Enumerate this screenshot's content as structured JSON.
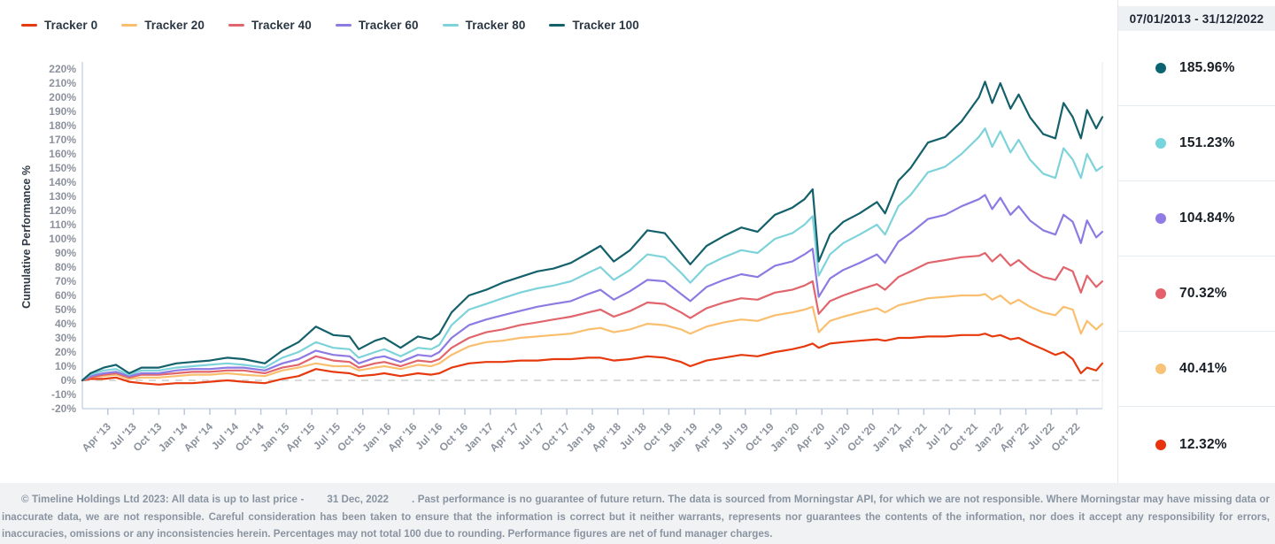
{
  "legend": {
    "items": [
      {
        "label": "Tracker 0",
        "color": "#e63a0e"
      },
      {
        "label": "Tracker 20",
        "color": "#f9bf6f"
      },
      {
        "label": "Tracker 40",
        "color": "#e1656d"
      },
      {
        "label": "Tracker 60",
        "color": "#8d7ae2"
      },
      {
        "label": "Tracker 80",
        "color": "#7ed3da"
      },
      {
        "label": "Tracker 100",
        "color": "#14616b"
      }
    ]
  },
  "sidebar": {
    "header": "07/01/2013 - 31/12/2022",
    "stats": [
      {
        "name": "Tracker 100",
        "value": "185.96%",
        "color": "#0c6472"
      },
      {
        "name": "Tracker 80",
        "value": "151.23%",
        "color": "#76d4dc"
      },
      {
        "name": "Tracker 60",
        "value": "104.84%",
        "color": "#8f7ae6"
      },
      {
        "name": "Tracker 40",
        "value": "70.32%",
        "color": "#e4606a"
      },
      {
        "name": "Tracker 20",
        "value": "40.41%",
        "color": "#f8c377"
      },
      {
        "name": "Tracker 0",
        "value": "12.32%",
        "color": "#e8330d"
      }
    ]
  },
  "chart_data": {
    "type": "line",
    "title": "",
    "xlabel": "",
    "ylabel": "Cumulative Performance %",
    "ylim": [
      -20,
      220
    ],
    "y_tick_step": 10,
    "grid": false,
    "zero_line_dashed": true,
    "legend_position": "top-left",
    "x_tick_labels": [
      "Apr '13",
      "Jul '13",
      "Oct '13",
      "Jan '14",
      "Apr '14",
      "Jul '14",
      "Oct '14",
      "Jan '15",
      "Apr '15",
      "Jul '15",
      "Oct '15",
      "Jan '16",
      "Apr '16",
      "Jul '16",
      "Oct '16",
      "Jan '17",
      "Apr '17",
      "Jul '17",
      "Oct '17",
      "Jan '18",
      "Apr '18",
      "Jul '18",
      "Oct '18",
      "Jan '19",
      "Apr '19",
      "Jul '19",
      "Oct '19",
      "Jan '20",
      "Apr '20",
      "Jul '20",
      "Oct '20",
      "Jan '21",
      "Apr '21",
      "Jul '21",
      "Oct '21",
      "Jan '22",
      "Apr '22",
      "Jul '22",
      "Oct '22"
    ],
    "x_years": [
      2013.0,
      2013.08,
      2013.21,
      2013.33,
      2013.46,
      2013.58,
      2013.75,
      2013.92,
      2014.08,
      2014.25,
      2014.42,
      2014.58,
      2014.79,
      2014.96,
      2015.12,
      2015.29,
      2015.46,
      2015.62,
      2015.71,
      2015.87,
      2015.96,
      2016.12,
      2016.29,
      2016.42,
      2016.5,
      2016.62,
      2016.79,
      2016.96,
      2017.12,
      2017.29,
      2017.46,
      2017.62,
      2017.79,
      2017.96,
      2018.08,
      2018.21,
      2018.37,
      2018.54,
      2018.71,
      2018.87,
      2018.96,
      2019.12,
      2019.29,
      2019.46,
      2019.62,
      2019.79,
      2019.96,
      2020.08,
      2020.16,
      2020.22,
      2020.33,
      2020.46,
      2020.62,
      2020.79,
      2020.87,
      2021.0,
      2021.12,
      2021.29,
      2021.46,
      2021.62,
      2021.79,
      2021.85,
      2021.92,
      2022.0,
      2022.1,
      2022.18,
      2022.29,
      2022.42,
      2022.54,
      2022.62,
      2022.71,
      2022.79,
      2022.85,
      2022.94,
      2023.0
    ],
    "series": [
      {
        "name": "Tracker 0",
        "color": "#e63a0e",
        "final_value": "12.32%",
        "values": [
          0,
          1,
          1,
          2,
          -1,
          -2,
          -3,
          -2,
          -2,
          -1,
          0,
          -1,
          -2,
          1,
          3,
          8,
          6,
          5,
          3,
          4,
          5,
          3,
          5,
          4,
          5,
          9,
          12,
          13,
          13,
          14,
          14,
          15,
          15,
          16,
          16,
          14,
          15,
          17,
          16,
          13,
          10,
          14,
          16,
          18,
          17,
          20,
          22,
          24,
          26,
          23,
          26,
          27,
          28,
          29,
          28,
          30,
          30,
          31,
          31,
          32,
          32,
          33,
          31,
          32,
          29,
          30,
          26,
          22,
          18,
          20,
          15,
          5,
          9,
          7,
          12
        ]
      },
      {
        "name": "Tracker 20",
        "color": "#f9bf6f",
        "final_value": "40.41%",
        "values": [
          0,
          2,
          3,
          4,
          1,
          2,
          2,
          3,
          4,
          4,
          5,
          4,
          3,
          7,
          9,
          12,
          10,
          10,
          7,
          9,
          10,
          8,
          11,
          10,
          12,
          18,
          24,
          27,
          28,
          30,
          31,
          32,
          33,
          36,
          37,
          34,
          36,
          40,
          39,
          36,
          33,
          38,
          41,
          43,
          42,
          46,
          48,
          50,
          52,
          34,
          42,
          45,
          48,
          51,
          48,
          53,
          55,
          58,
          59,
          60,
          60,
          61,
          57,
          60,
          54,
          57,
          52,
          48,
          46,
          52,
          50,
          33,
          42,
          36,
          40
        ]
      },
      {
        "name": "Tracker 40",
        "color": "#e1656d",
        "final_value": "70.32%",
        "values": [
          0,
          2,
          4,
          5,
          2,
          4,
          4,
          5,
          6,
          6,
          7,
          7,
          5,
          9,
          11,
          17,
          14,
          13,
          9,
          12,
          13,
          10,
          14,
          13,
          15,
          23,
          30,
          34,
          36,
          39,
          41,
          43,
          45,
          48,
          50,
          45,
          49,
          55,
          54,
          48,
          44,
          51,
          55,
          58,
          57,
          62,
          64,
          67,
          70,
          47,
          56,
          60,
          64,
          68,
          64,
          73,
          77,
          83,
          85,
          87,
          88,
          90,
          84,
          89,
          81,
          85,
          78,
          73,
          71,
          80,
          77,
          62,
          74,
          66,
          70
        ]
      },
      {
        "name": "Tracker 60",
        "color": "#8d7ae2",
        "final_value": "104.84%",
        "values": [
          0,
          3,
          5,
          6,
          3,
          5,
          5,
          7,
          8,
          8,
          9,
          9,
          7,
          12,
          15,
          21,
          18,
          17,
          12,
          16,
          17,
          13,
          18,
          17,
          20,
          30,
          39,
          43,
          46,
          49,
          52,
          54,
          56,
          61,
          64,
          57,
          63,
          71,
          70,
          61,
          56,
          66,
          71,
          75,
          73,
          81,
          84,
          89,
          93,
          59,
          72,
          78,
          83,
          89,
          83,
          98,
          104,
          114,
          117,
          123,
          128,
          131,
          121,
          129,
          117,
          123,
          113,
          106,
          103,
          117,
          112,
          97,
          113,
          101,
          105
        ]
      },
      {
        "name": "Tracker 80",
        "color": "#7ed3da",
        "final_value": "151.23%",
        "values": [
          0,
          4,
          7,
          8,
          4,
          7,
          7,
          9,
          10,
          11,
          12,
          11,
          9,
          16,
          20,
          27,
          23,
          22,
          16,
          20,
          22,
          17,
          23,
          22,
          25,
          39,
          50,
          54,
          58,
          62,
          65,
          67,
          70,
          76,
          80,
          71,
          78,
          89,
          87,
          76,
          69,
          81,
          87,
          92,
          90,
          100,
          104,
          110,
          116,
          74,
          89,
          97,
          103,
          110,
          103,
          123,
          131,
          147,
          151,
          160,
          172,
          178,
          165,
          176,
          161,
          170,
          156,
          146,
          143,
          164,
          156,
          143,
          160,
          148,
          151
        ]
      },
      {
        "name": "Tracker 100",
        "color": "#14616b",
        "final_value": "185.96%",
        "values": [
          0,
          5,
          9,
          11,
          5,
          9,
          9,
          12,
          13,
          14,
          16,
          15,
          12,
          21,
          27,
          38,
          32,
          31,
          22,
          28,
          30,
          23,
          31,
          29,
          33,
          48,
          60,
          64,
          69,
          73,
          77,
          79,
          83,
          90,
          95,
          84,
          92,
          106,
          104,
          90,
          82,
          95,
          102,
          108,
          105,
          117,
          122,
          128,
          135,
          84,
          103,
          112,
          118,
          126,
          118,
          141,
          150,
          168,
          172,
          183,
          200,
          211,
          196,
          210,
          192,
          202,
          186,
          174,
          171,
          196,
          186,
          171,
          191,
          178,
          186
        ]
      }
    ]
  },
  "footer": {
    "prefix": "© Timeline Holdings Ltd 2023: All data is up to last price -",
    "date": "31 Dec, 2022",
    "suffix": ". Past performance is no guarantee of future return. The data is sourced from Morningstar API, for which we are not responsible. Where Morningstar may have missing data or inaccurate data, we are not responsible. Careful consideration has been taken to ensure that the information is correct but it neither warrants, represents nor guarantees the contents of the information, nor does it accept any responsibility for errors, inaccuracies, omissions or any inconsistencies herein. Percentages may not total 100 due to rounding. Performance figures are net of fund manager charges."
  }
}
